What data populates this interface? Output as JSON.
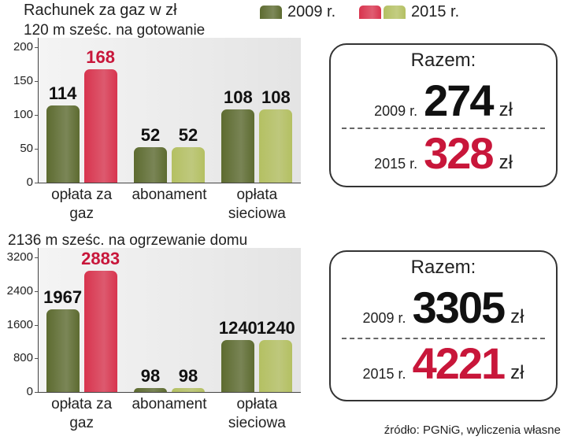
{
  "chart_data": [
    {
      "type": "bar",
      "title": "Rachunek za gaz w zł",
      "subtitle": "120 m sześc. na gotowanie",
      "categories": [
        "opłata za gaz",
        "abonament",
        "opłata sieciowa"
      ],
      "series": [
        {
          "name": "2009 r.",
          "color": "#5d6b30",
          "colors": [
            "#5d6b30",
            "#5d6b30",
            "#5d6b30"
          ],
          "values": [
            114,
            52,
            108
          ],
          "value_label_colors": [
            "#111111",
            "#111111",
            "#111111"
          ]
        },
        {
          "name": "2015 r.",
          "color": "#d8344e",
          "colors": [
            "#d8344e",
            "#b4c062",
            "#b4c062"
          ],
          "values": [
            168,
            52,
            108
          ],
          "value_label_colors": [
            "#c8163a",
            "#111111",
            "#111111"
          ]
        }
      ],
      "ylim": [
        0,
        200
      ],
      "yticks": [
        0,
        50,
        100,
        150,
        200
      ],
      "total": {
        "title": "Razem:",
        "rows": [
          {
            "label": "2009 r.",
            "value": 274,
            "unit": "zł",
            "color": "#111111"
          },
          {
            "label": "2015 r.",
            "value": 328,
            "unit": "zł",
            "color": "#c8163a"
          }
        ]
      }
    },
    {
      "type": "bar",
      "subtitle": "2136 m sześc. na ogrzewanie domu",
      "categories": [
        "opłata za gaz",
        "abonament",
        "opłata sieciowa"
      ],
      "series": [
        {
          "color": "#5d6b30",
          "colors": [
            "#5d6b30",
            "#5d6b30",
            "#5d6b30"
          ],
          "values": [
            1967,
            98,
            1240
          ],
          "value_label_colors": [
            "#111111",
            "#111111",
            "#111111"
          ]
        },
        {
          "color": "#d8344e",
          "colors": [
            "#d8344e",
            "#b4c062",
            "#b4c062"
          ],
          "values": [
            2883,
            98,
            1240
          ],
          "value_label_colors": [
            "#c8163a",
            "#111111",
            "#111111"
          ]
        }
      ],
      "ylim": [
        0,
        3200
      ],
      "yticks": [
        0,
        800,
        1600,
        2400,
        3200
      ],
      "total": {
        "title": "Razem:",
        "rows": [
          {
            "label": "2009 r.",
            "value": 3305,
            "unit": "zł",
            "color": "#111111"
          },
          {
            "label": "2015 r.",
            "value": 4221,
            "unit": "zł",
            "color": "#c8163a"
          }
        ]
      }
    }
  ],
  "source": "źródło: PGNiG, wyliczenia własne"
}
